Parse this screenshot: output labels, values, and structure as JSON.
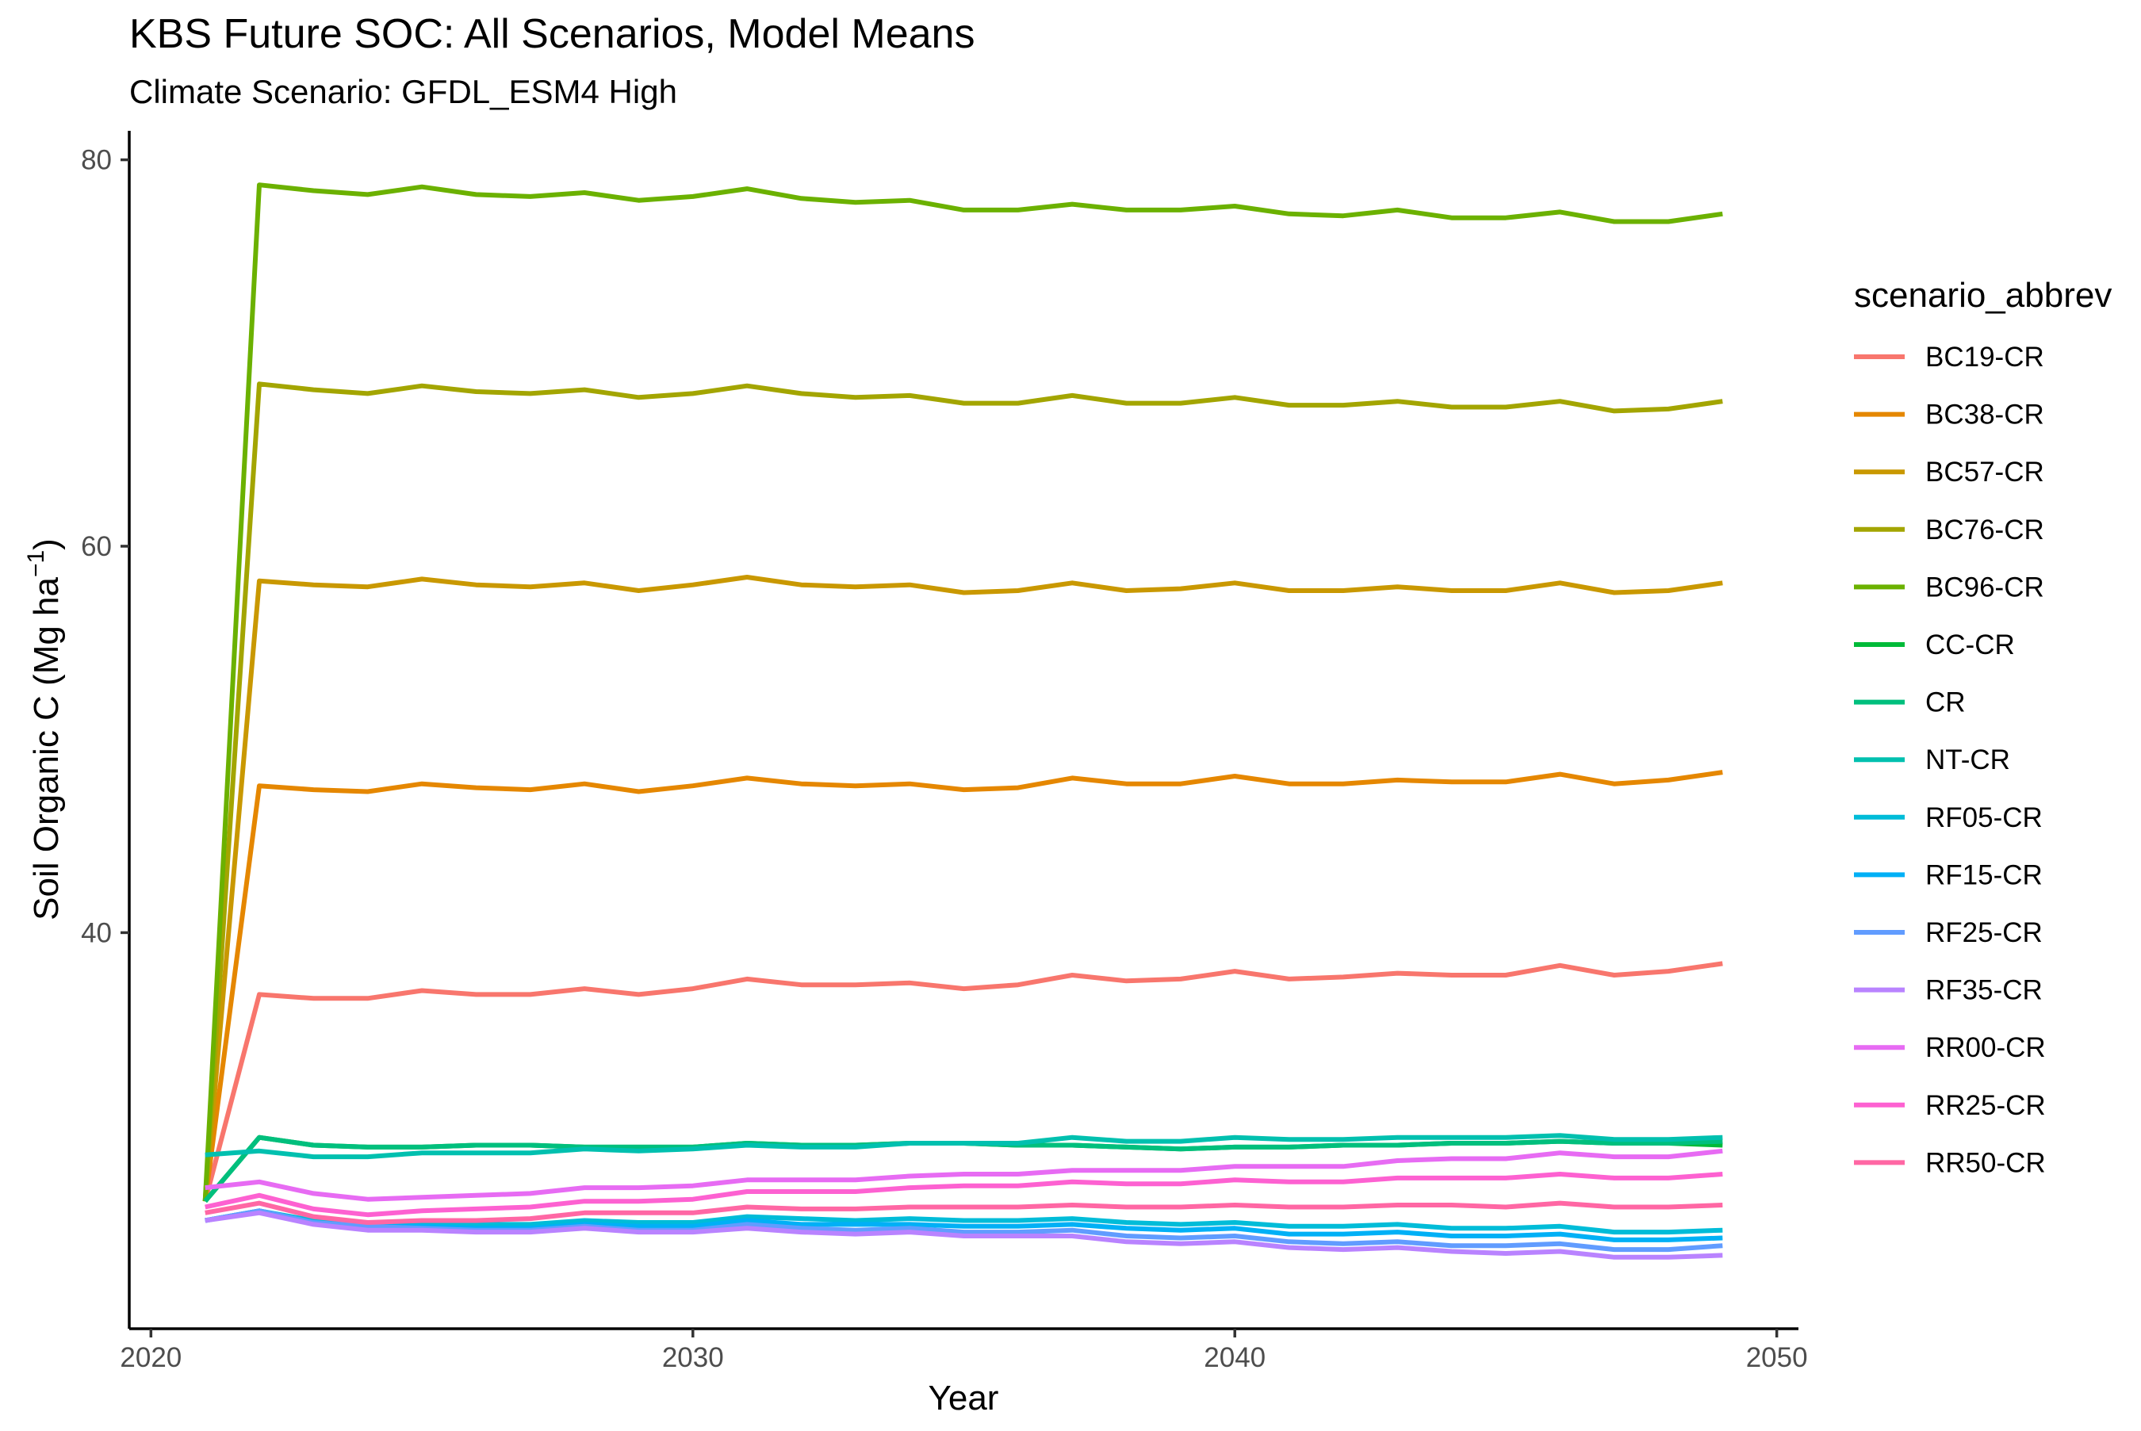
{
  "chart_data": {
    "type": "line",
    "title": "KBS Future SOC: All Scenarios, Model Means",
    "subtitle": "Climate Scenario: GFDL_ESM4 High",
    "xlabel": "Year",
    "ylabel_main": "Soil Organic C (Mg ha",
    "ylabel_exp": "−1",
    "ylabel_close": ")",
    "xlim": [
      2019.6,
      2050.4
    ],
    "ylim": [
      19.5,
      81.5
    ],
    "x_ticks": [
      2020,
      2030,
      2040,
      2050
    ],
    "x_tick_labels": [
      "2020",
      "2030",
      "2040",
      "2050"
    ],
    "y_ticks": [
      40,
      60,
      80
    ],
    "y_tick_labels": [
      "40",
      "60",
      "80"
    ],
    "grid": false,
    "legend_title": "scenario_abbrev",
    "legend_position": "right",
    "x": [
      2021,
      2022,
      2023,
      2024,
      2025,
      2026,
      2027,
      2028,
      2029,
      2030,
      2031,
      2032,
      2033,
      2034,
      2035,
      2036,
      2037,
      2038,
      2039,
      2040,
      2041,
      2042,
      2043,
      2044,
      2045,
      2046,
      2047,
      2048,
      2049
    ],
    "series": [
      {
        "name": "BC19-CR",
        "color": "#F8766D",
        "values": [
          26.1,
          36.8,
          36.6,
          36.6,
          37.0,
          36.8,
          36.8,
          37.1,
          36.8,
          37.1,
          37.6,
          37.3,
          37.3,
          37.4,
          37.1,
          37.3,
          37.8,
          37.5,
          37.6,
          38.0,
          37.6,
          37.7,
          37.9,
          37.8,
          37.8,
          38.3,
          37.8,
          38.0,
          38.4
        ]
      },
      {
        "name": "BC38-CR",
        "color": "#E58700",
        "values": [
          26.1,
          47.6,
          47.4,
          47.3,
          47.7,
          47.5,
          47.4,
          47.7,
          47.3,
          47.6,
          48.0,
          47.7,
          47.6,
          47.7,
          47.4,
          47.5,
          48.0,
          47.7,
          47.7,
          48.1,
          47.7,
          47.7,
          47.9,
          47.8,
          47.8,
          48.2,
          47.7,
          47.9,
          48.3
        ]
      },
      {
        "name": "BC57-CR",
        "color": "#C99800",
        "values": [
          26.1,
          58.2,
          58.0,
          57.9,
          58.3,
          58.0,
          57.9,
          58.1,
          57.7,
          58.0,
          58.4,
          58.0,
          57.9,
          58.0,
          57.6,
          57.7,
          58.1,
          57.7,
          57.8,
          58.1,
          57.7,
          57.7,
          57.9,
          57.7,
          57.7,
          58.1,
          57.6,
          57.7,
          58.1
        ]
      },
      {
        "name": "BC76-CR",
        "color": "#A3A500",
        "values": [
          26.1,
          68.4,
          68.1,
          67.9,
          68.3,
          68.0,
          67.9,
          68.1,
          67.7,
          67.9,
          68.3,
          67.9,
          67.7,
          67.8,
          67.4,
          67.4,
          67.8,
          67.4,
          67.4,
          67.7,
          67.3,
          67.3,
          67.5,
          67.2,
          67.2,
          67.5,
          67.0,
          67.1,
          67.5
        ]
      },
      {
        "name": "BC96-CR",
        "color": "#6BB100",
        "values": [
          26.1,
          78.7,
          78.4,
          78.2,
          78.6,
          78.2,
          78.1,
          78.3,
          77.9,
          78.1,
          78.5,
          78.0,
          77.8,
          77.9,
          77.4,
          77.4,
          77.7,
          77.4,
          77.4,
          77.6,
          77.2,
          77.1,
          77.4,
          77.0,
          77.0,
          77.3,
          76.8,
          76.8,
          77.2
        ]
      },
      {
        "name": "CC-CR",
        "color": "#00BA38",
        "values": [
          26.1,
          29.4,
          29.0,
          28.9,
          28.9,
          29.0,
          29.0,
          28.9,
          28.9,
          28.9,
          29.1,
          29.0,
          29.0,
          29.1,
          29.1,
          29.0,
          29.0,
          28.9,
          28.8,
          28.9,
          28.9,
          29.0,
          29.0,
          29.1,
          29.1,
          29.2,
          29.1,
          29.1,
          29.0
        ]
      },
      {
        "name": "CR",
        "color": "#00BF7D",
        "values": [
          26.1,
          29.4,
          29.0,
          28.9,
          28.9,
          29.0,
          29.0,
          28.9,
          28.9,
          28.9,
          29.1,
          29.0,
          29.0,
          29.1,
          29.1,
          29.0,
          29.0,
          28.9,
          28.8,
          28.9,
          28.9,
          29.0,
          29.0,
          29.1,
          29.1,
          29.2,
          29.1,
          29.1,
          29.2
        ]
      },
      {
        "name": "NT-CR",
        "color": "#00C0AF",
        "values": [
          28.5,
          28.7,
          28.4,
          28.4,
          28.6,
          28.6,
          28.6,
          28.8,
          28.7,
          28.8,
          29.0,
          28.9,
          28.9,
          29.1,
          29.1,
          29.1,
          29.4,
          29.2,
          29.2,
          29.4,
          29.3,
          29.3,
          29.4,
          29.4,
          29.4,
          29.5,
          29.3,
          29.3,
          29.4
        ]
      },
      {
        "name": "RF05-CR",
        "color": "#00BCD8",
        "values": [
          25.1,
          25.6,
          25.1,
          24.9,
          24.9,
          24.9,
          24.9,
          25.1,
          25.0,
          25.0,
          25.3,
          25.2,
          25.1,
          25.2,
          25.1,
          25.1,
          25.2,
          25.0,
          24.9,
          25.0,
          24.8,
          24.8,
          24.9,
          24.7,
          24.7,
          24.8,
          24.5,
          24.5,
          24.6
        ]
      },
      {
        "name": "RF15-CR",
        "color": "#00B0F6",
        "values": [
          25.1,
          25.6,
          25.0,
          24.8,
          24.8,
          24.7,
          24.7,
          24.9,
          24.8,
          24.8,
          25.1,
          24.9,
          24.9,
          24.9,
          24.8,
          24.8,
          24.9,
          24.7,
          24.6,
          24.7,
          24.4,
          24.4,
          24.5,
          24.3,
          24.3,
          24.4,
          24.1,
          24.1,
          24.2
        ]
      },
      {
        "name": "RF25-CR",
        "color": "#619CFF",
        "values": [
          25.1,
          25.6,
          25.0,
          24.8,
          24.7,
          24.6,
          24.6,
          24.8,
          24.6,
          24.6,
          24.9,
          24.7,
          24.6,
          24.7,
          24.5,
          24.5,
          24.6,
          24.3,
          24.2,
          24.3,
          24.0,
          23.9,
          24.0,
          23.8,
          23.8,
          23.9,
          23.6,
          23.6,
          23.8
        ]
      },
      {
        "name": "RF35-CR",
        "color": "#B983FF",
        "values": [
          25.1,
          25.5,
          24.9,
          24.6,
          24.6,
          24.5,
          24.5,
          24.7,
          24.5,
          24.5,
          24.7,
          24.5,
          24.4,
          24.5,
          24.3,
          24.3,
          24.3,
          24.0,
          23.9,
          24.0,
          23.7,
          23.6,
          23.7,
          23.5,
          23.4,
          23.5,
          23.2,
          23.2,
          23.3
        ]
      },
      {
        "name": "RR00-CR",
        "color": "#E76BF3",
        "values": [
          26.8,
          27.1,
          26.5,
          26.2,
          26.3,
          26.4,
          26.5,
          26.8,
          26.8,
          26.9,
          27.2,
          27.2,
          27.2,
          27.4,
          27.5,
          27.5,
          27.7,
          27.7,
          27.7,
          27.9,
          27.9,
          27.9,
          28.2,
          28.3,
          28.3,
          28.6,
          28.4,
          28.4,
          28.7
        ]
      },
      {
        "name": "RR25-CR",
        "color": "#FD61D1",
        "values": [
          25.8,
          26.4,
          25.7,
          25.4,
          25.6,
          25.7,
          25.8,
          26.1,
          26.1,
          26.2,
          26.6,
          26.6,
          26.6,
          26.8,
          26.9,
          26.9,
          27.1,
          27.0,
          27.0,
          27.2,
          27.1,
          27.1,
          27.3,
          27.3,
          27.3,
          27.5,
          27.3,
          27.3,
          27.5
        ]
      },
      {
        "name": "RR50-CR",
        "color": "#FF67A4",
        "values": [
          25.5,
          26.0,
          25.3,
          25.0,
          25.1,
          25.1,
          25.2,
          25.5,
          25.5,
          25.5,
          25.8,
          25.7,
          25.7,
          25.8,
          25.8,
          25.8,
          25.9,
          25.8,
          25.8,
          25.9,
          25.8,
          25.8,
          25.9,
          25.9,
          25.8,
          26.0,
          25.8,
          25.8,
          25.9
        ]
      }
    ]
  }
}
